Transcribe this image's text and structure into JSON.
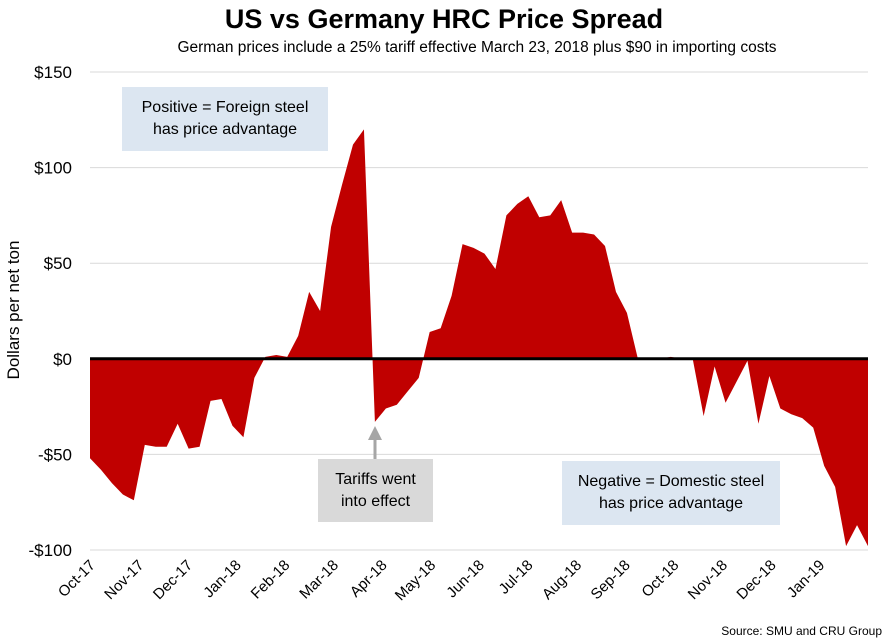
{
  "chart_data": {
    "type": "area",
    "title": "US vs Germany HRC Price Spread",
    "subtitle": "German prices include a 25% tariff effective March 23, 2018 plus $90 in importing costs",
    "ylabel": "Dollars per net ton",
    "xlabel": "",
    "source": "Source: SMU and CRU Group",
    "ylim": [
      -100,
      150
    ],
    "yticks": [
      150,
      100,
      50,
      0,
      -50,
      -100
    ],
    "ytick_labels": [
      "$150",
      "$100",
      "$50",
      "$0",
      "-$50",
      "-$100"
    ],
    "x_tick_labels": [
      "Oct-17",
      "Nov-17",
      "Dec-17",
      "Jan-18",
      "Feb-18",
      "Mar-18",
      "Apr-18",
      "May-18",
      "Jun-18",
      "Jul-18",
      "Aug-18",
      "Sep-18",
      "Oct-18",
      "Nov-18",
      "Dec-18",
      "Jan-19"
    ],
    "grid": true,
    "colors": {
      "area": "#c00000",
      "zero_line": "#000000",
      "grid": "#d9d9d9"
    },
    "values": [
      -52,
      -58,
      -65,
      -71,
      -74,
      -45,
      -46,
      -46,
      -34,
      -47,
      -46,
      -22,
      -21,
      -35,
      -41,
      -10,
      1,
      2,
      1,
      12,
      35,
      25,
      69,
      91,
      112,
      120,
      -33,
      -26,
      -24,
      -17,
      -10,
      14,
      16,
      33,
      60,
      58,
      55,
      47,
      75,
      81,
      85,
      74,
      75,
      83,
      66,
      66,
      65,
      59,
      35,
      24,
      0,
      0,
      0,
      1,
      0,
      0,
      -30,
      -4,
      -23,
      -12,
      -1,
      -34,
      -9,
      -26,
      -29,
      -31,
      -36,
      -56,
      -67,
      -98,
      -87,
      -98
    ],
    "annotations": [
      {
        "lines": [
          "Positive = Foreign steel",
          "has price advantage"
        ],
        "fill": "#dce6f1"
      },
      {
        "lines": [
          "Tariffs went",
          "into effect"
        ],
        "fill": "#d9d9d9",
        "arrow": true
      },
      {
        "lines": [
          "Negative = Domestic steel",
          "has price advantage"
        ],
        "fill": "#dce6f1"
      }
    ]
  }
}
